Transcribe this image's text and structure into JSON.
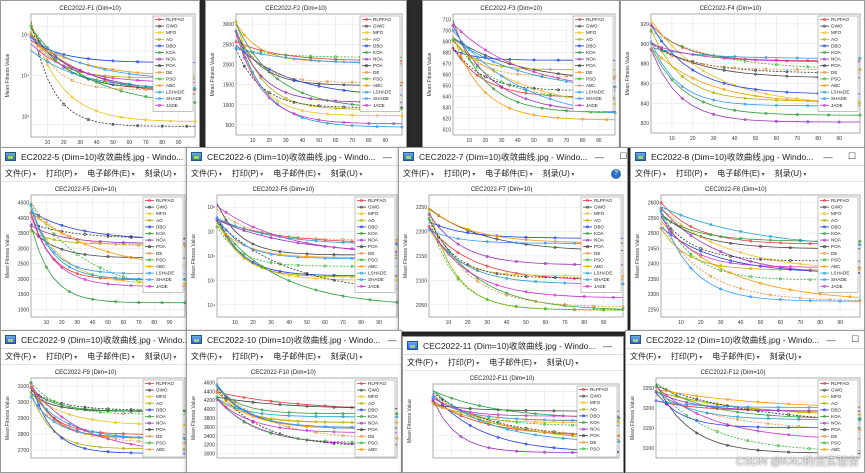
{
  "menu": {
    "file": "文件(F)",
    "print": "打印(P)",
    "email": "电子邮件(E)",
    "burn": "刻录(U)"
  },
  "legend": [
    "RLPFAO",
    "GWO",
    "MFO",
    "AO",
    "DBO",
    "KOA",
    "NOA",
    "POA",
    "DE",
    "PSO",
    "ABC",
    "LSHADE",
    "SHADE",
    "JADE"
  ],
  "series_colors": [
    "#e8393f",
    "#444444",
    "#f0c020",
    "#b0b000",
    "#1f3fe0",
    "#2e9e3a",
    "#9b30b8",
    "#333333",
    "#e69138",
    "#2eb82e",
    "#ff9900",
    "#1e9fd0",
    "#3399ff",
    "#cc33cc"
  ],
  "y_axis_label": "Mean Fitness Value",
  "watermark": "CSDN @KAU的云实验台",
  "windows": [
    {
      "id": "w1",
      "title": "",
      "has_title": false,
      "has_menu": false,
      "chart": {
        "title": "CEC2022-F1 (Dim=10)",
        "yticks": [
          "10⁵",
          "10⁴",
          "10³"
        ],
        "xticks": [
          "10",
          "20",
          "30",
          "40",
          "50",
          "60",
          "70",
          "80",
          "90"
        ],
        "show_legend": true
      }
    },
    {
      "id": "w2",
      "title": "",
      "has_title": false,
      "has_menu": false,
      "chart": {
        "title": "CEC2022-F2 (Dim=10)",
        "yticks": [
          "3000",
          "2500",
          "2000",
          "1500",
          "1000",
          "500"
        ],
        "xticks": [
          "10",
          "20",
          "30",
          "40",
          "50",
          "60",
          "70",
          "80",
          "90"
        ],
        "show_legend": true
      }
    },
    {
      "id": "w3",
      "title": "",
      "has_title": false,
      "has_menu": false,
      "chart": {
        "title": "CEC2022-F3 (Dim=10)",
        "yticks": [
          "710",
          "700",
          "690",
          "680",
          "670",
          "660",
          "650",
          "640",
          "630",
          "620",
          "610"
        ],
        "xticks": [
          "10",
          "20",
          "30",
          "40",
          "50",
          "60",
          "70",
          "80",
          "90"
        ],
        "show_legend": true
      }
    },
    {
      "id": "w4",
      "title": "",
      "has_title": false,
      "has_menu": false,
      "chart": {
        "title": "CEC2022-F4 (Dim=10)",
        "yticks": [
          "920",
          "900",
          "880",
          "860",
          "840",
          "820"
        ],
        "xticks": [
          "10",
          "20",
          "30",
          "40",
          "50",
          "60",
          "70",
          "80",
          "90"
        ],
        "show_legend": true
      }
    },
    {
      "id": "w5",
      "title": "EC2022-5 (Dim=10)收敛曲线.jpg - Windo...",
      "has_title": true,
      "has_menu": true,
      "chart": {
        "title": "CEC2022-F5 (Dim=10)",
        "yticks": [
          "4500",
          "4000",
          "3500",
          "3000",
          "2500",
          "2000",
          "1500",
          "1000"
        ],
        "xticks": [
          "10",
          "20",
          "30",
          "40",
          "50",
          "60",
          "70",
          "80",
          "90"
        ],
        "show_legend": true
      }
    },
    {
      "id": "w6",
      "title": "CEC2022-6 (Dim=10)收敛曲线.jpg - Windo...",
      "has_title": true,
      "has_menu": true,
      "chart": {
        "title": "CEC2022-F6 (Dim=10)",
        "yticks": [
          "10⁸",
          "10⁷",
          "10⁶",
          "10⁵",
          "10⁴"
        ],
        "xticks": [
          "10",
          "20",
          "30",
          "40",
          "50",
          "60",
          "70",
          "80",
          "90"
        ],
        "show_legend": true
      }
    },
    {
      "id": "w7",
      "title": "CEC2022-7 (Dim=10)收敛曲线.jpg - Windo...",
      "has_title": true,
      "has_menu": true,
      "chart": {
        "title": "CEC2022-F7 (Dim=10)",
        "yticks": [
          "2250",
          "2200",
          "2150",
          "2100",
          "2050"
        ],
        "xticks": [
          "10",
          "20",
          "30",
          "40",
          "50",
          "60",
          "70",
          "80",
          "90"
        ],
        "show_legend": true
      }
    },
    {
      "id": "w8",
      "title": "EC2022-8 (Dim=10)收敛曲线.jpg - Windo...",
      "has_title": true,
      "has_menu": true,
      "chart": {
        "title": "CEC2022-F8 (Dim=10)",
        "yticks": [
          "2600",
          "2550",
          "2500",
          "2450",
          "2400",
          "2350",
          "2300",
          "2250"
        ],
        "xticks": [
          "10",
          "20",
          "30",
          "40",
          "50",
          "60",
          "70",
          "80",
          "90"
        ],
        "show_legend": true
      }
    },
    {
      "id": "w9",
      "title": "CEC2022-9 (Dim=10)收敛曲线.jpg - Windo...",
      "has_title": true,
      "has_menu": true,
      "chart": {
        "title": "CEC2022-F9 (Dim=10)",
        "yticks": [
          "3100",
          "3000",
          "2900",
          "2800",
          "2700"
        ],
        "xticks": [],
        "show_legend": true
      }
    },
    {
      "id": "w10",
      "title": "CEC2022-10 (Dim=10)收敛曲线.jpg - Windo...",
      "has_title": true,
      "has_menu": true,
      "chart": {
        "title": "CEC2022-F10 (Dim=10)",
        "yticks": [
          "4600",
          "4400",
          "4200",
          "4000",
          "3800",
          "3600",
          "3400",
          "3200",
          "3000"
        ],
        "xticks": [],
        "show_legend": true
      }
    },
    {
      "id": "w11",
      "title": "CEC2022-11 (Dim=10)收敛曲线.jpg - Windo...",
      "has_title": true,
      "has_menu": true,
      "chart": {
        "title": "CEC2022-F11 (Dim=10)",
        "yticks": [],
        "xticks": [],
        "show_legend": true
      }
    },
    {
      "id": "w12",
      "title": "CEC2022-12 (Dim=10)收敛曲线.jpg - Windo...",
      "has_title": true,
      "has_menu": true,
      "chart": {
        "title": "CEC2022-F12 (Dim=10)",
        "yticks": [
          "3250",
          "3200",
          "3150",
          "3100"
        ],
        "xticks": [],
        "show_legend": true
      }
    }
  ]
}
